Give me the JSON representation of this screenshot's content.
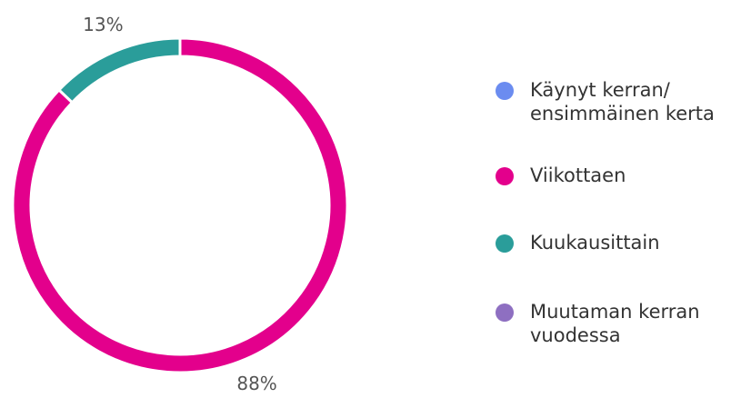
{
  "chart_data": {
    "type": "donut",
    "categories": [
      "Käynyt kerran/\nensimmäinen kerta",
      "Viikottaen",
      "Kuukausittain",
      "Muutaman kerran\nvuodessa"
    ],
    "values": [
      0,
      88,
      13,
      0
    ],
    "value_labels": [
      null,
      "88%",
      "13%",
      null
    ],
    "colors": [
      "#6b8cf0",
      "#e3008c",
      "#2a9d9a",
      "#8e6fc1"
    ],
    "legend": "right"
  }
}
